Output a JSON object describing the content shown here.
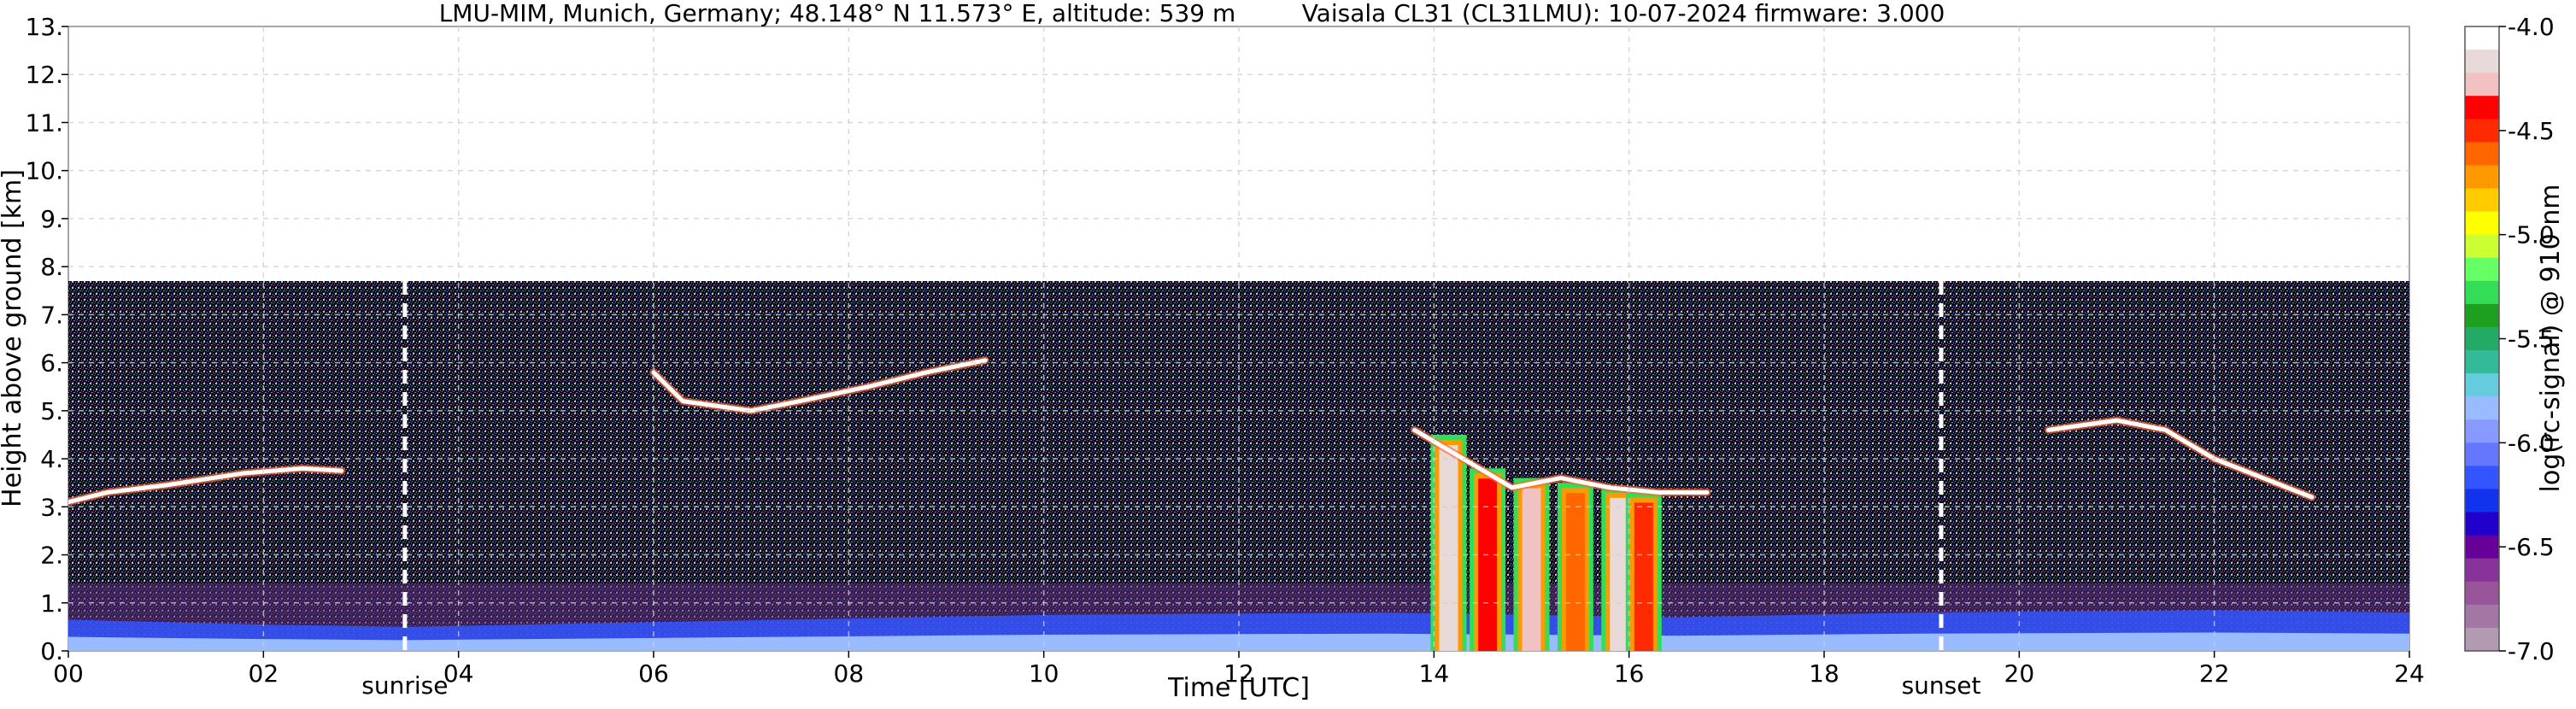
{
  "chart_data": {
    "type": "heatmap",
    "title": "LMU-MIM, Munich, Germany; 48.148° N 11.573° E, altitude: 539 m",
    "title_right": "Vaisala CL31 (CL31LMU): 10-07-2024    firmware: 3.000",
    "xlabel": "Time [UTC]",
    "ylabel": "Height above ground [km]",
    "xlim": [
      0,
      24
    ],
    "ylim": [
      0,
      13
    ],
    "x_ticks": [
      "00",
      "02",
      "04",
      "06",
      "08",
      "10",
      "12",
      "14",
      "16",
      "18",
      "20",
      "22",
      "24"
    ],
    "y_ticks": [
      "0.",
      "1.",
      "2.",
      "3.",
      "4.",
      "5.",
      "6.",
      "7.",
      "8.",
      "9.",
      "10.",
      "11.",
      "12.",
      "13."
    ],
    "grid": true,
    "measurement_top_km": 7.7,
    "markers": [
      {
        "label": "sunrise",
        "time_h": 3.45
      },
      {
        "label": "sunset",
        "time_h": 19.2
      }
    ],
    "colorbar": {
      "label": "log(rc-signal) @ 910 nm",
      "range": [
        -7.0,
        -4.0
      ],
      "ticks": [
        "-4.0",
        "-4.5",
        "-5.0",
        "-5.5",
        "-6.0",
        "-6.5",
        "-7.0"
      ],
      "colors": [
        "#ffffff",
        "#e9dada",
        "#f2c2c2",
        "#ff0000",
        "#ff2a00",
        "#ff6600",
        "#ff9900",
        "#ffcc00",
        "#ffff00",
        "#ccff33",
        "#66ff66",
        "#33dd55",
        "#1f9f1f",
        "#22aa66",
        "#33bb99",
        "#66ccdd",
        "#99bbff",
        "#8899ff",
        "#6677ff",
        "#3355ff",
        "#1133ee",
        "#2200cc",
        "#660099",
        "#883399",
        "#995599",
        "#a377a3",
        "#b29ab2"
      ]
    },
    "layers": [
      {
        "name": "cirrus_early",
        "points": [
          [
            0.0,
            3.1
          ],
          [
            0.4,
            3.3
          ],
          [
            1.0,
            3.45
          ],
          [
            1.8,
            3.7
          ],
          [
            2.4,
            3.8
          ],
          [
            2.8,
            3.75
          ]
        ]
      },
      {
        "name": "cirrus_morning",
        "points": [
          [
            6.0,
            5.8
          ],
          [
            6.3,
            5.2
          ],
          [
            7.0,
            5.0
          ],
          [
            7.5,
            5.2
          ],
          [
            8.2,
            5.5
          ],
          [
            8.8,
            5.8
          ],
          [
            9.4,
            6.05
          ]
        ]
      },
      {
        "name": "cloud_afternoon_top",
        "points": [
          [
            13.8,
            4.6
          ],
          [
            14.3,
            4.0
          ],
          [
            14.8,
            3.4
          ],
          [
            15.3,
            3.6
          ],
          [
            15.8,
            3.4
          ],
          [
            16.3,
            3.3
          ],
          [
            16.8,
            3.3
          ]
        ]
      },
      {
        "name": "cirrus_evening",
        "points": [
          [
            20.3,
            4.6
          ],
          [
            21.0,
            4.8
          ],
          [
            21.5,
            4.6
          ],
          [
            22.0,
            4.0
          ],
          [
            22.5,
            3.6
          ],
          [
            23.0,
            3.2
          ]
        ]
      }
    ],
    "precipitation_streaks": [
      {
        "time_h": 14.15,
        "top_km": 4.5,
        "value": -4.1
      },
      {
        "time_h": 14.55,
        "top_km": 3.8,
        "value": -4.3
      },
      {
        "time_h": 15.0,
        "top_km": 3.6,
        "value": -4.2
      },
      {
        "time_h": 15.45,
        "top_km": 3.5,
        "value": -4.6
      },
      {
        "time_h": 15.9,
        "top_km": 3.4,
        "value": -4.1
      },
      {
        "time_h": 16.15,
        "top_km": 3.3,
        "value": -4.5
      }
    ],
    "boundary_layer": [
      [
        0.0,
        0.65
      ],
      [
        1.0,
        0.6
      ],
      [
        2.0,
        0.55
      ],
      [
        3.45,
        0.5
      ],
      [
        6.0,
        0.6
      ],
      [
        10.0,
        0.75
      ],
      [
        13.5,
        0.8
      ],
      [
        16.5,
        0.7
      ],
      [
        19.0,
        0.8
      ],
      [
        22.0,
        0.85
      ],
      [
        24.0,
        0.8
      ]
    ]
  }
}
